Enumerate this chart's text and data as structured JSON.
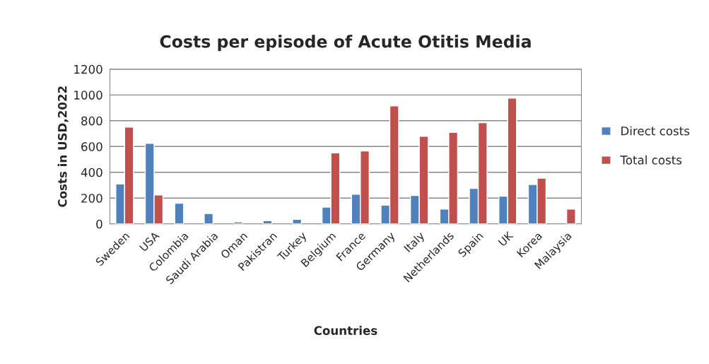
{
  "chart_data": {
    "type": "bar",
    "title": "Costs per episode of Acute Otitis Media",
    "xlabel": "Countries",
    "ylabel": "Costs in USD,2022",
    "categories": [
      "Sweden",
      "USA",
      "Colombia",
      "Saudi Arabia",
      "Oman",
      "Pakistran",
      "Turkey",
      "Belgium",
      "France",
      "Germany",
      "Italy",
      "Netherlands",
      "Spain",
      "UK",
      "Korea",
      "Malaysia"
    ],
    "series": [
      {
        "name": "Direct costs",
        "color": "#4f81bd",
        "values": [
          310,
          625,
          160,
          80,
          15,
          25,
          35,
          130,
          230,
          145,
          220,
          115,
          275,
          215,
          305,
          null
        ]
      },
      {
        "name": "Total costs",
        "color": "#c0504d",
        "values": [
          750,
          225,
          null,
          null,
          null,
          null,
          null,
          550,
          565,
          915,
          680,
          710,
          785,
          975,
          355,
          115
        ]
      }
    ],
    "ylim": [
      0,
      1200
    ],
    "yticks": [
      0,
      200,
      400,
      600,
      800,
      1000,
      1200
    ],
    "grid": "y",
    "legend": "right"
  }
}
